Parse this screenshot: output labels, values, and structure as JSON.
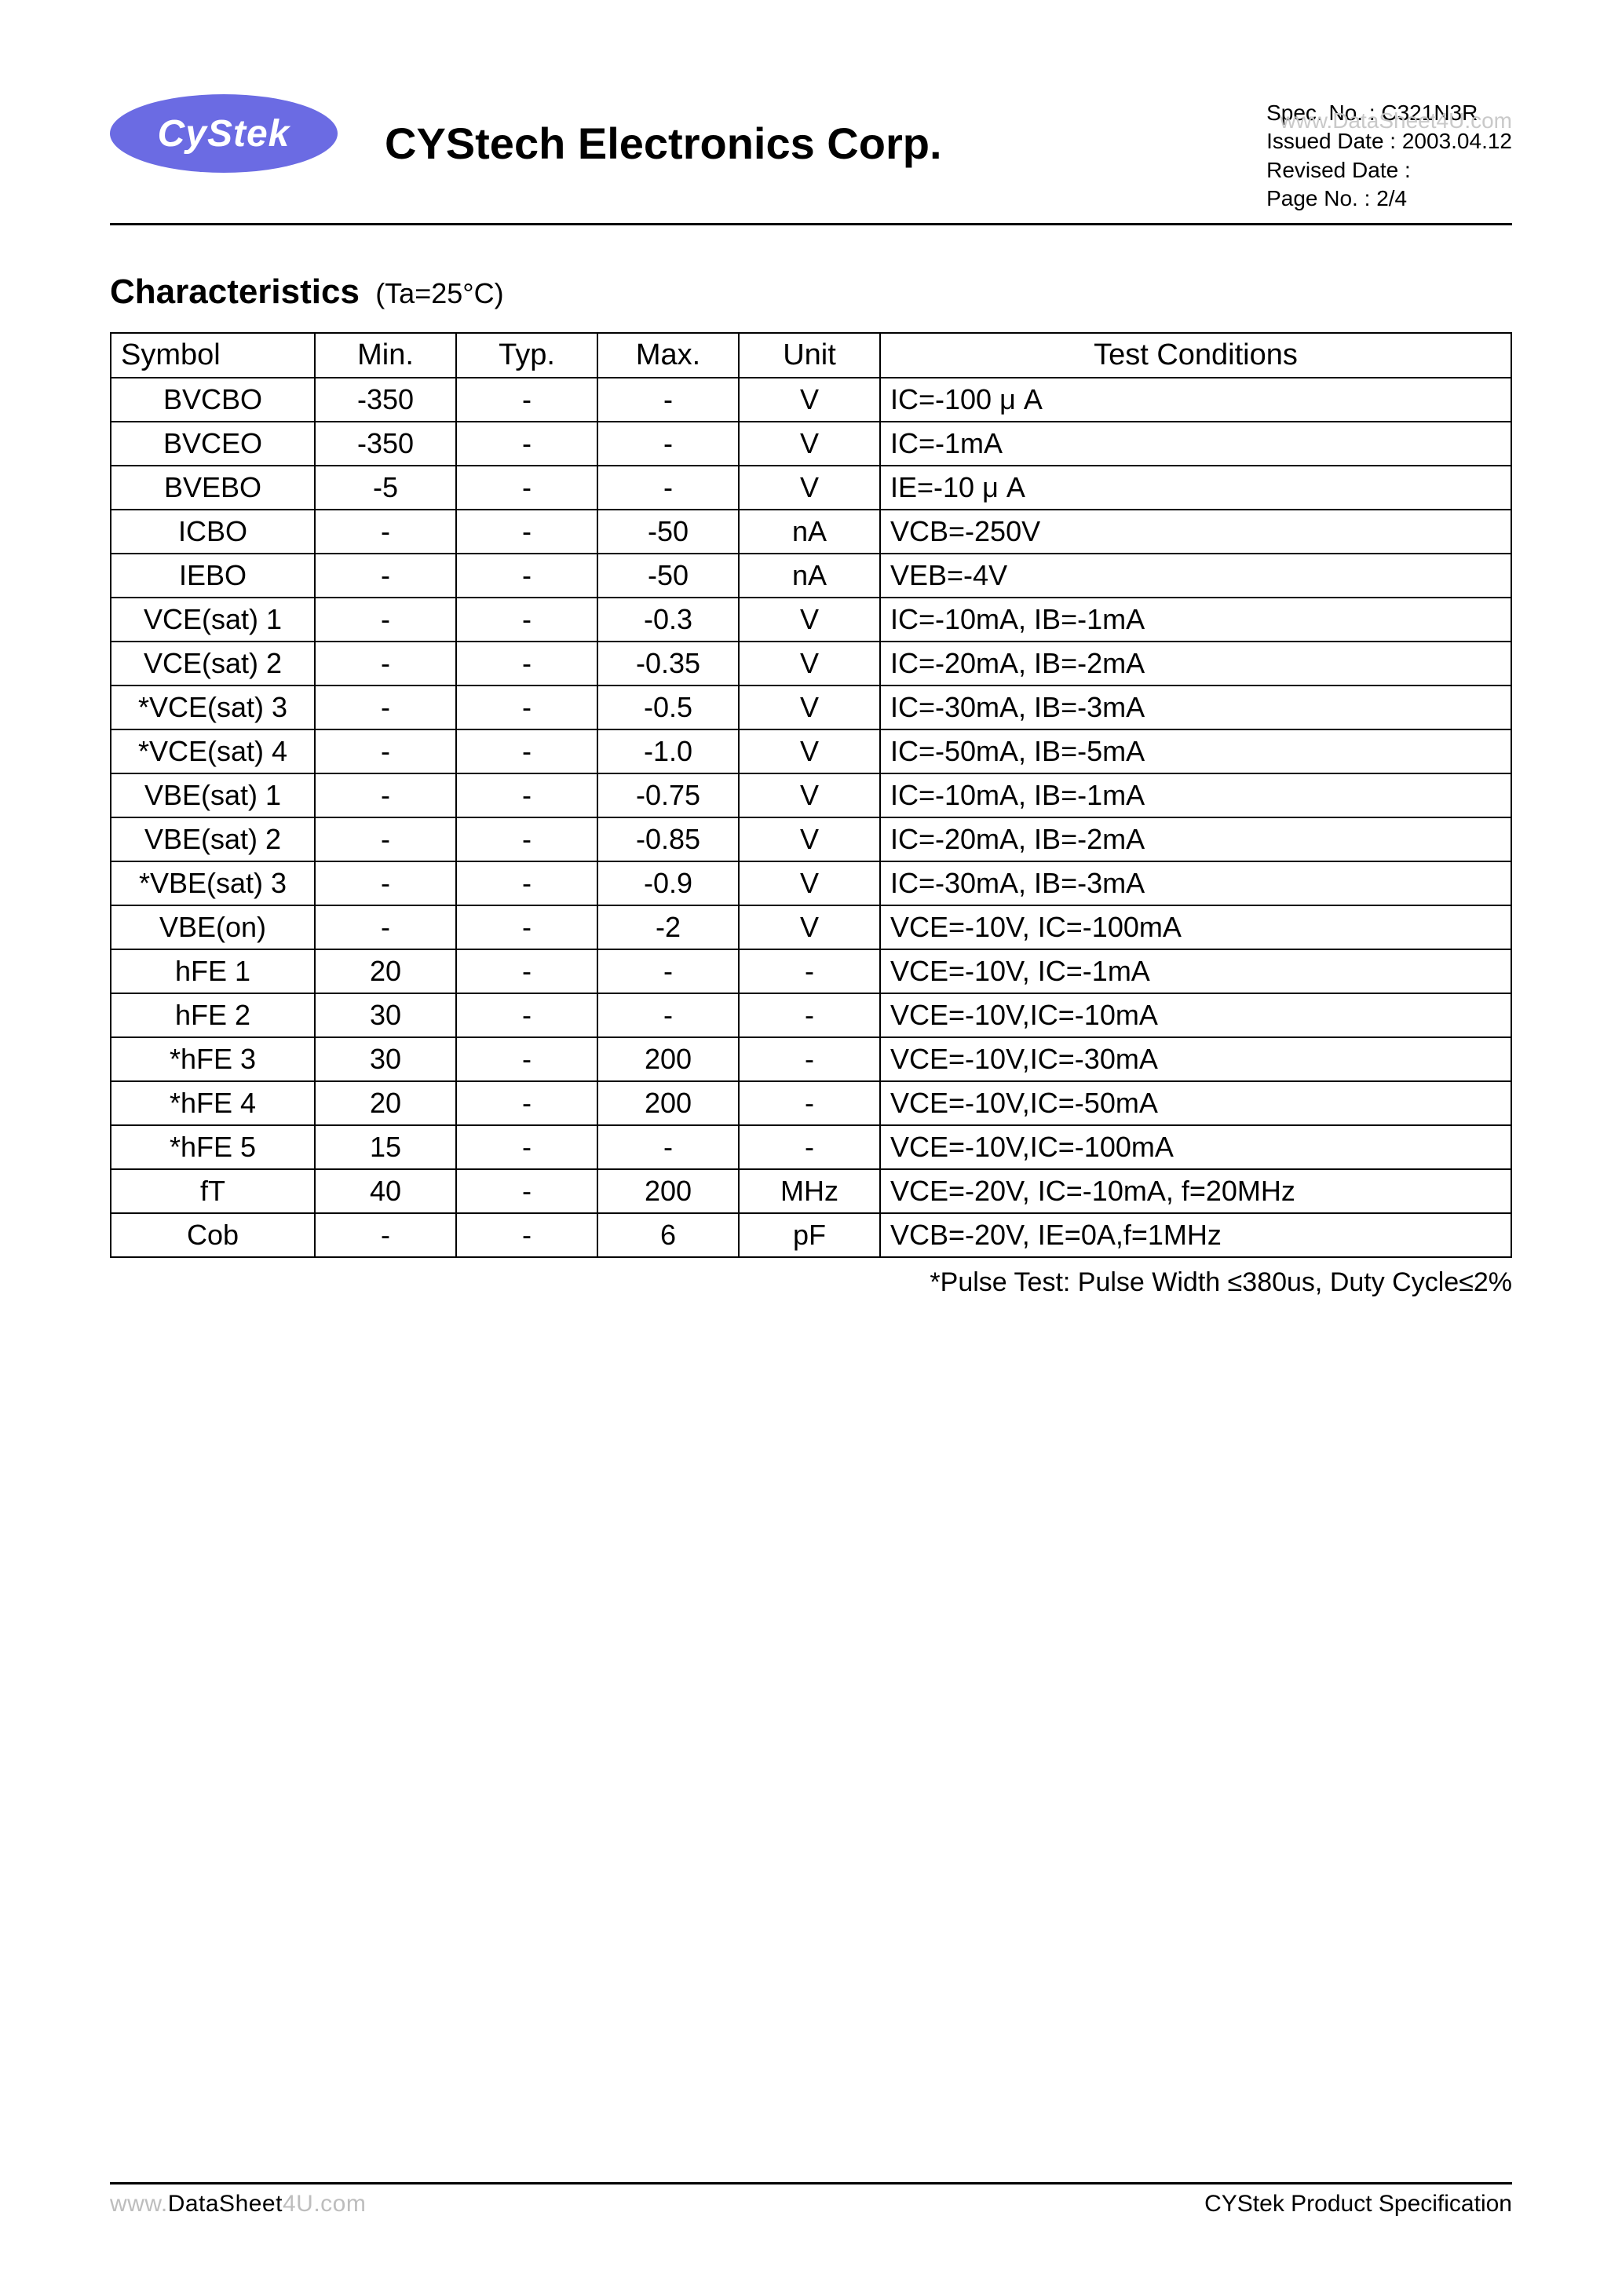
{
  "header": {
    "logo_text": "CyStek",
    "company": "CYStech Electronics Corp.",
    "spec_no_label": "Spec. No. : ",
    "spec_no": "C321N3R",
    "issued_label": "Issued Date : ",
    "issued_date": "2003.04.12",
    "revised_label": "Revised Date :",
    "page_label": "Page No. : ",
    "page_no": "2/4",
    "watermark": "www.DataSheet4U.com"
  },
  "section": {
    "title": "Characteristics",
    "subtitle": "(Ta=25°C)"
  },
  "table": {
    "headers": {
      "symbol": "Symbol",
      "min": "Min.",
      "typ": "Typ.",
      "max": "Max.",
      "unit": "Unit",
      "cond": "Test Conditions"
    },
    "rows": [
      {
        "symbol": "BVCBO",
        "min": "-350",
        "typ": "-",
        "max": "-",
        "unit": "V",
        "cond": "IC=-100 μ A"
      },
      {
        "symbol": "BVCEO",
        "min": "-350",
        "typ": "-",
        "max": "-",
        "unit": "V",
        "cond": "IC=-1mA"
      },
      {
        "symbol": "BVEBO",
        "min": "-5",
        "typ": "-",
        "max": "-",
        "unit": "V",
        "cond": "IE=-10 μ A"
      },
      {
        "symbol": "ICBO",
        "min": "-",
        "typ": "-",
        "max": "-50",
        "unit": "nA",
        "cond": "VCB=-250V"
      },
      {
        "symbol": "IEBO",
        "min": "-",
        "typ": "-",
        "max": "-50",
        "unit": "nA",
        "cond": "VEB=-4V"
      },
      {
        "symbol": "VCE(sat) 1",
        "min": "-",
        "typ": "-",
        "max": "-0.3",
        "unit": "V",
        "cond": "IC=-10mA, IB=-1mA"
      },
      {
        "symbol": "VCE(sat) 2",
        "min": "-",
        "typ": "-",
        "max": "-0.35",
        "unit": "V",
        "cond": "IC=-20mA, IB=-2mA"
      },
      {
        "symbol": "*VCE(sat) 3",
        "min": "-",
        "typ": "-",
        "max": "-0.5",
        "unit": "V",
        "cond": "IC=-30mA, IB=-3mA"
      },
      {
        "symbol": "*VCE(sat) 4",
        "min": "-",
        "typ": "-",
        "max": "-1.0",
        "unit": "V",
        "cond": "IC=-50mA, IB=-5mA"
      },
      {
        "symbol": "VBE(sat) 1",
        "min": "-",
        "typ": "-",
        "max": "-0.75",
        "unit": "V",
        "cond": "IC=-10mA, IB=-1mA"
      },
      {
        "symbol": "VBE(sat) 2",
        "min": "-",
        "typ": "-",
        "max": "-0.85",
        "unit": "V",
        "cond": "IC=-20mA, IB=-2mA"
      },
      {
        "symbol": "*VBE(sat) 3",
        "min": "-",
        "typ": "-",
        "max": "-0.9",
        "unit": "V",
        "cond": "IC=-30mA, IB=-3mA"
      },
      {
        "symbol": "VBE(on)",
        "min": "-",
        "typ": "-",
        "max": "-2",
        "unit": "V",
        "cond": "VCE=-10V, IC=-100mA"
      },
      {
        "symbol": "hFE 1",
        "min": "20",
        "typ": "-",
        "max": "-",
        "unit": "-",
        "cond": "VCE=-10V, IC=-1mA"
      },
      {
        "symbol": "hFE 2",
        "min": "30",
        "typ": "-",
        "max": "-",
        "unit": "-",
        "cond": "VCE=-10V,IC=-10mA"
      },
      {
        "symbol": "*hFE 3",
        "min": "30",
        "typ": "-",
        "max": "200",
        "unit": "-",
        "cond": "VCE=-10V,IC=-30mA"
      },
      {
        "symbol": "*hFE 4",
        "min": "20",
        "typ": "-",
        "max": "200",
        "unit": "-",
        "cond": "VCE=-10V,IC=-50mA"
      },
      {
        "symbol": "*hFE 5",
        "min": "15",
        "typ": "-",
        "max": "-",
        "unit": "-",
        "cond": "VCE=-10V,IC=-100mA"
      },
      {
        "symbol": "fT",
        "min": "40",
        "typ": "-",
        "max": "200",
        "unit": "MHz",
        "cond": "VCE=-20V, IC=-10mA, f=20MHz"
      },
      {
        "symbol": "Cob",
        "min": "-",
        "typ": "-",
        "max": "6",
        "unit": "pF",
        "cond": "VCB=-20V, IE=0A,f=1MHz"
      }
    ]
  },
  "footnote": "*Pulse Test: Pulse Width ≤380us, Duty Cycle≤2%",
  "footer": {
    "left_gray_1": "www.",
    "left_dark": "DataSheet",
    "left_gray_2": "4U.com",
    "right": "CYStek Product Specification"
  },
  "styling": {
    "background_color": "#ffffff",
    "text_color": "#000000",
    "logo_bg": "#6b6be3",
    "logo_text_color": "#ffffff",
    "watermark_color": "#c9c9c9",
    "border_color": "#000000",
    "font_family": "Arial",
    "title_fontsize": 44,
    "table_fontsize": 36,
    "meta_fontsize": 28,
    "footer_fontsize": 30
  }
}
